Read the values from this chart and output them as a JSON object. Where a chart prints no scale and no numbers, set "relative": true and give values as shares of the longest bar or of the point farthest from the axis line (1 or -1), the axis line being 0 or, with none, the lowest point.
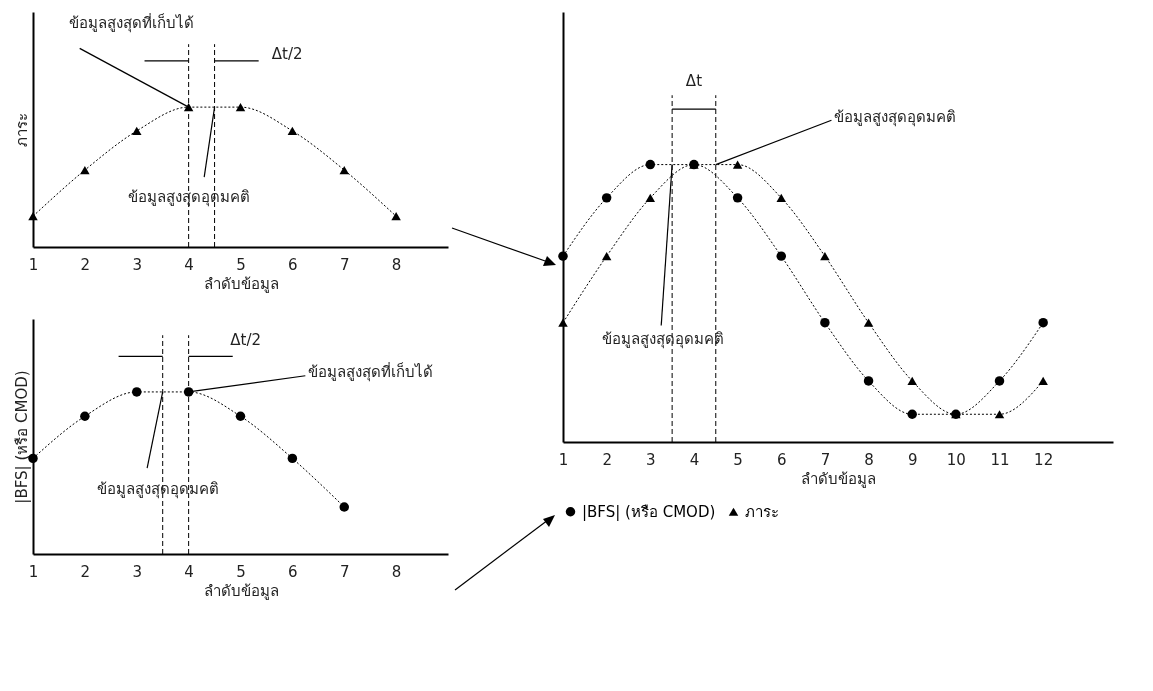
{
  "chart_data": [
    {
      "type": "line",
      "relative": true,
      "xlabel": "ลำดับข้อมูล",
      "ylabel": "ภาระ",
      "x": [
        1,
        2,
        3,
        4,
        5,
        6,
        7,
        8
      ],
      "xlim": [
        1,
        9
      ],
      "xticks": [
        1,
        2,
        3,
        4,
        5,
        6,
        7,
        8
      ],
      "line_style": "dotted",
      "series": [
        {
          "color": "#000000",
          "marker": "triangle",
          "values": [
            0.22,
            0.55,
            0.83,
            1,
            1,
            0.83,
            0.55,
            0.22
          ]
        }
      ],
      "ref_lines": [
        {
          "axis": "x",
          "value": 4,
          "line_style": "dashed"
        },
        {
          "axis": "x",
          "value": 4.5,
          "line_style": "dashed"
        }
      ],
      "annotations": [
        {
          "text": "ข้อมูลสูงสุดที่เก็บได้",
          "x": 4,
          "y": 1
        },
        {
          "text": "ข้อมูลสูงสุดอุดมคติ",
          "x": 4.5,
          "y": 1
        },
        "Δt/2"
      ]
    },
    {
      "type": "line",
      "relative": true,
      "xlabel": "ลำดับข้อมูล",
      "ylabel": "|BFS| (หรือ CMOD)",
      "xlim": [
        1,
        9
      ],
      "xticks": [
        1,
        2,
        3,
        4,
        5,
        6,
        7,
        8
      ],
      "line_style": "dotted",
      "series": [
        {
          "color": "#000000",
          "marker": "circle",
          "x": [
            1,
            2,
            3,
            4,
            5,
            6,
            7
          ],
          "values": [
            0.59,
            0.85,
            1,
            1,
            0.85,
            0.59,
            0.29
          ]
        }
      ],
      "ref_lines": [
        {
          "axis": "x",
          "value": 3.5,
          "line_style": "dashed"
        },
        {
          "axis": "x",
          "value": 4,
          "line_style": "dashed"
        }
      ],
      "annotations": [
        "Δt/2",
        {
          "text": "ข้อมูลสูงสุดที่เก็บได้",
          "x": 4,
          "y": 1
        },
        {
          "text": "ข้อมูลสูงสุดอุดมคติ",
          "x": 3.5,
          "y": 1
        }
      ]
    },
    {
      "type": "line",
      "relative": true,
      "xlabel": "ลำดับข้อมูล",
      "x": [
        1,
        2,
        3,
        4,
        5,
        6,
        7,
        8,
        9,
        10,
        11,
        12
      ],
      "xlim": [
        1,
        13.6
      ],
      "xticks": [
        1,
        2,
        3,
        4,
        5,
        6,
        7,
        8,
        9,
        10,
        11,
        12
      ],
      "line_style": "dotted",
      "legend": "bottom",
      "series": [
        {
          "name": "|BFS| (หรือ CMOD)",
          "color": "#000000",
          "marker": "circle",
          "values": [
            0.67,
            0.88,
            1,
            1,
            0.88,
            0.67,
            0.43,
            0.22,
            0.1,
            0.1,
            0.22,
            0.43
          ]
        },
        {
          "name": "ภาระ",
          "color": "#000000",
          "marker": "triangle",
          "values": [
            0.43,
            0.67,
            0.88,
            1,
            1,
            0.88,
            0.67,
            0.43,
            0.22,
            0.1,
            0.1,
            0.22
          ]
        }
      ],
      "ref_lines": [
        {
          "axis": "x",
          "value": 3.5,
          "line_style": "dashed"
        },
        {
          "axis": "x",
          "value": 4.5,
          "line_style": "dashed"
        }
      ],
      "annotations": [
        "Δt",
        {
          "text": "ข้อมูลสูงสุดอุดมคติ",
          "x": 4.5,
          "y": 1
        },
        {
          "text": "ข้อมูลสูงสุดอุดมคติ",
          "x": 3.5,
          "y": 1
        }
      ]
    }
  ]
}
